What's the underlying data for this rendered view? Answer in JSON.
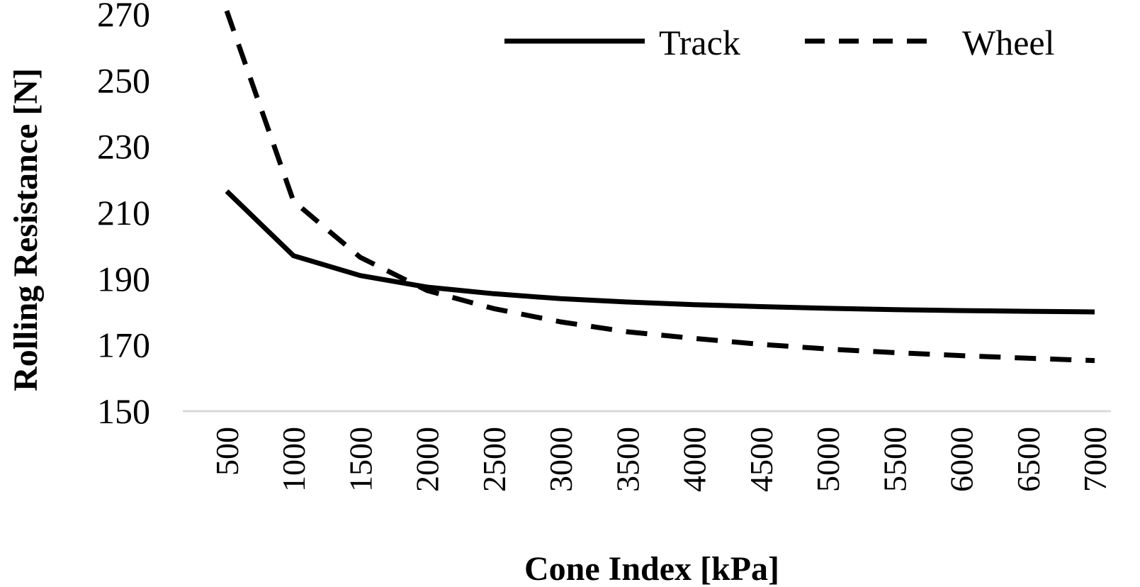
{
  "chart_data": {
    "type": "line",
    "title": "",
    "xlabel": "Cone Index [kPa]",
    "ylabel": "Rolling Resistance [N]",
    "categories": [
      "500",
      "1000",
      "1500",
      "2000",
      "2500",
      "3000",
      "3500",
      "4000",
      "4500",
      "5000",
      "5500",
      "6000",
      "6500",
      "7000"
    ],
    "y_ticks": [
      "150",
      "170",
      "190",
      "210",
      "230",
      "250",
      "270"
    ],
    "ylim": [
      150,
      270
    ],
    "grid": false,
    "legend_position": "top-right",
    "series": [
      {
        "name": "Track",
        "style": "solid",
        "color": "#000000",
        "values": [
          216.5,
          197,
          191,
          187.5,
          185.5,
          184,
          183,
          182.2,
          181.6,
          181.1,
          180.7,
          180.4,
          180.2,
          180.0
        ]
      },
      {
        "name": "Wheel",
        "style": "dashed",
        "color": "#000000",
        "values": [
          271,
          213.5,
          196.5,
          186.5,
          181,
          177,
          174,
          172,
          170.2,
          168.8,
          167.7,
          166.8,
          166.0,
          165.3
        ]
      }
    ]
  }
}
